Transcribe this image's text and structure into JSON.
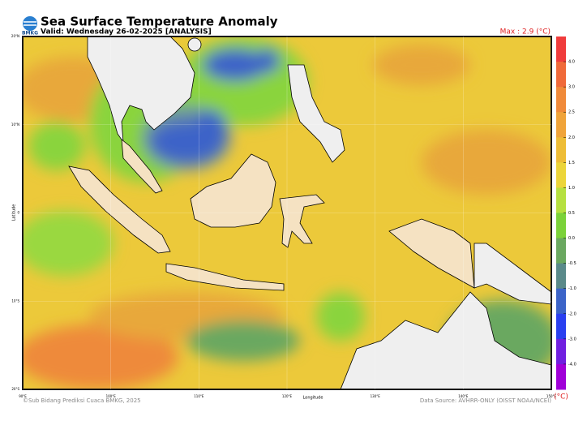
{
  "header": {
    "logo": "BMKG",
    "title": "Sea Surface Temperature Anomaly",
    "subtitle": "Valid: Wednesday 26-02-2025 [ANALYSIS]",
    "max_label": "Max : 2.9 (°C)"
  },
  "map": {
    "lat_labels": [
      "20°N",
      "10°N",
      "0",
      "10°S",
      "20°S"
    ],
    "lon_labels": [
      "90°E",
      "100°E",
      "110°E",
      "120°E",
      "130°E",
      "140°E",
      "150°E"
    ],
    "lat_title": "Latitude",
    "lon_title": "Longitude"
  },
  "colorbar": {
    "unit": "(°C)",
    "ticks": [
      {
        "value": 4,
        "label": "4.0"
      },
      {
        "value": 3,
        "label": "3.0"
      },
      2.5,
      {
        "value": 2,
        "label": "2.0"
      },
      1.5,
      {
        "value": 1,
        "label": "1.0"
      },
      0.5,
      {
        "value": 0,
        "label": "0.0"
      },
      -0.5,
      {
        "value": -1,
        "label": "-1.0"
      },
      {
        "value": -2,
        "label": "-2.0"
      },
      {
        "value": -3,
        "label": "-3.0"
      },
      {
        "value": -4,
        "label": "-4.0"
      }
    ],
    "colors": [
      "#f03c3c",
      "#f06a3a",
      "#f08a3a",
      "#f0a43a",
      "#eebd36",
      "#ecd53a",
      "#b6e040",
      "#7bd23a",
      "#6aa860",
      "#5a8a8a",
      "#3c64c8",
      "#2a40f0",
      "#7020e0",
      "#a000d8"
    ]
  },
  "footer": {
    "credit": "©Sub Bidang Prediksi Cuaca BMKG, 2025",
    "source": "Data Source: AVHRR-ONLY (OISST NOAA/NCEI)"
  }
}
